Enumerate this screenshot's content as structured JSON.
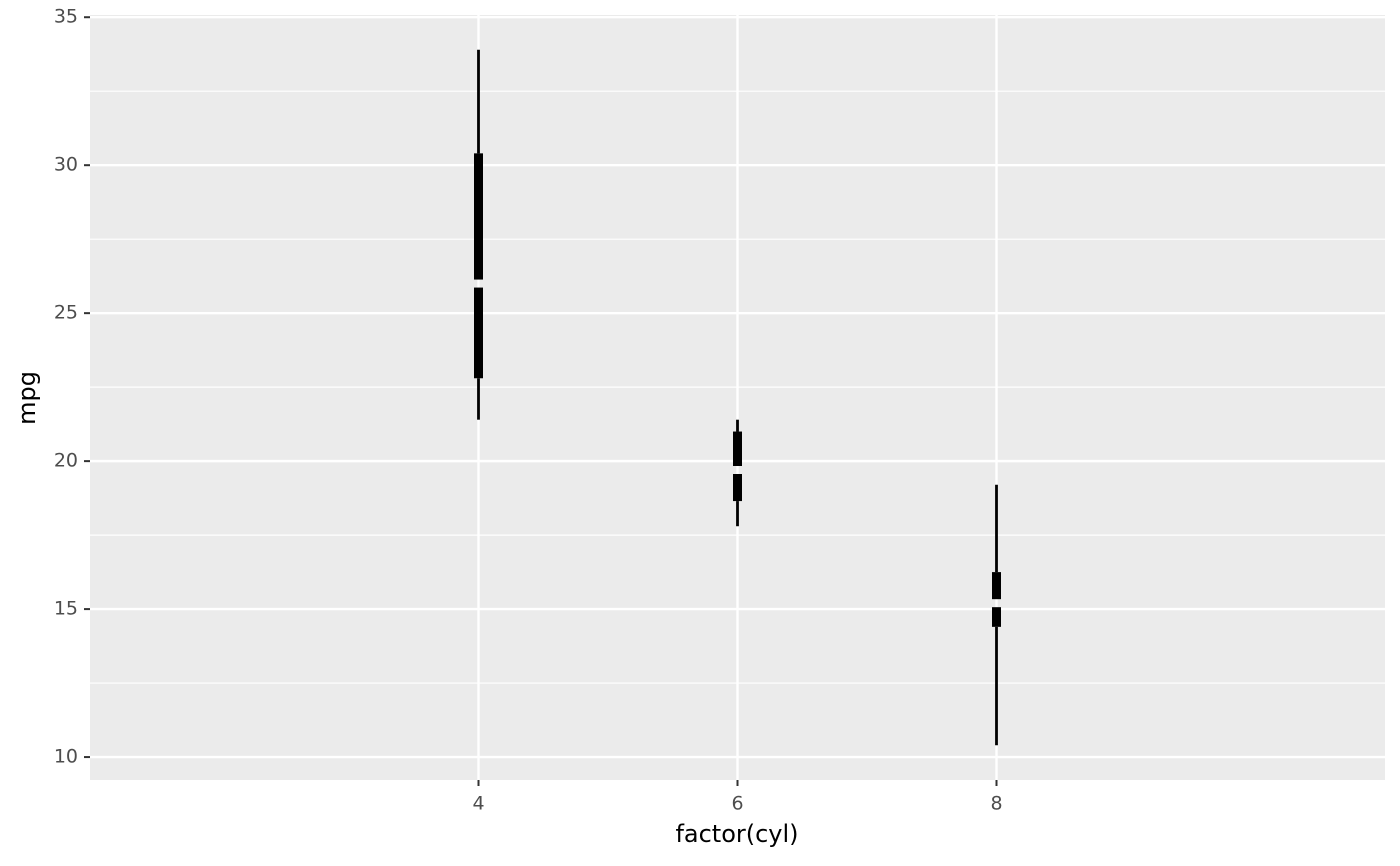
{
  "chart_data": {
    "type": "tufte-boxplot",
    "x_label": "factor(cyl)",
    "y_label": "mpg",
    "categories": [
      "4",
      "6",
      "8"
    ],
    "boxes": [
      {
        "min": 21.4,
        "q1": 22.8,
        "median": 26,
        "q3": 30.4,
        "max": 33.9
      },
      {
        "min": 17.8,
        "q1": 18.65,
        "median": 19.7,
        "q3": 21,
        "max": 21.4
      },
      {
        "min": 10.4,
        "q1": 14.4,
        "median": 15.2,
        "q3": 16.25,
        "max": 19.2
      }
    ],
    "color": "#000000",
    "ylim": [
      9.225,
      35.075
    ],
    "yticks": [
      10,
      15,
      20,
      25,
      30,
      35
    ],
    "minor_yticks": [
      12.5,
      17.5,
      22.5,
      27.5,
      32.5
    ],
    "grid": true
  }
}
